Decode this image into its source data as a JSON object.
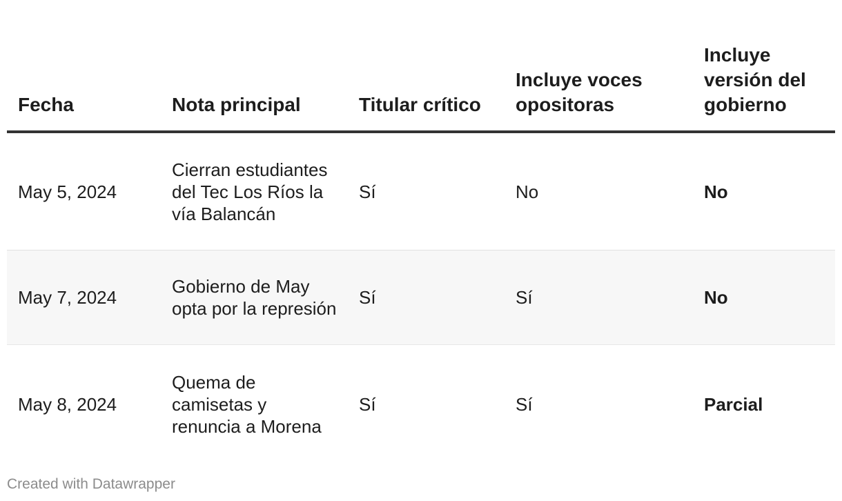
{
  "chart_data": {
    "type": "table",
    "columns": [
      "Fecha",
      "Nota principal",
      "Titular crítico",
      "Incluye voces opositoras",
      "Incluye versión del gobierno"
    ],
    "rows": [
      {
        "fecha": "May 5, 2024",
        "nota": "Cierran estudiantes del Tec Los Ríos la vía Balancán",
        "titular": "Sí",
        "voces": "No",
        "gobierno": "No"
      },
      {
        "fecha": "May 7, 2024",
        "nota": "Gobierno de May opta por la represión",
        "titular": "Sí",
        "voces": "Sí",
        "gobierno": "No"
      },
      {
        "fecha": "May 8, 2024",
        "nota": "Quema de camisetas y renuncia a Morena",
        "titular": "Sí",
        "voces": "Sí",
        "gobierno": "Parcial"
      }
    ]
  },
  "footer": {
    "credit": "Created with Datawrapper"
  },
  "colors": {
    "header_rule": "#333333",
    "stripe": "#f7f7f7",
    "footer_text": "#8c8c8c"
  }
}
